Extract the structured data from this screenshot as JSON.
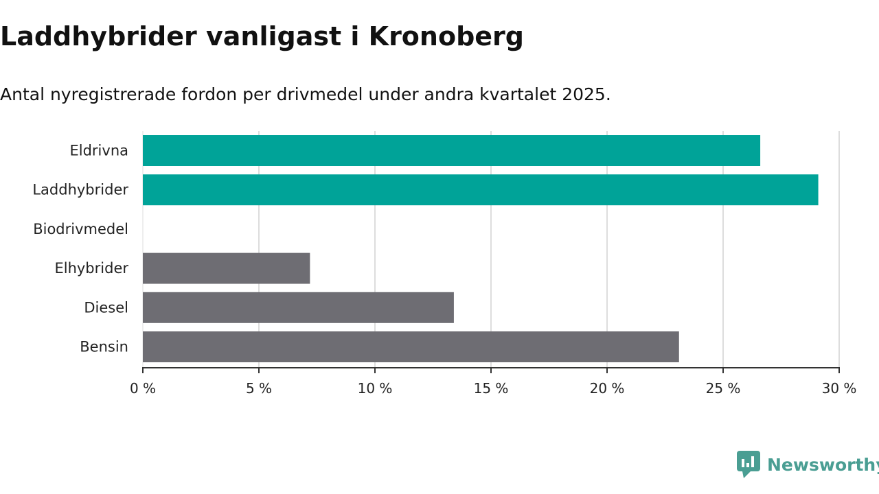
{
  "page": {
    "title": "Laddhybrider vanligast i Kronoberg",
    "subtitle": "Antal nyregistrerade fordon per drivmedel under andra kvartalet 2025.",
    "logo": {
      "name": "Newsworthy",
      "icon": "newsworthy-logo-icon",
      "color": "#4a9e93"
    }
  },
  "chart_data": {
    "type": "bar",
    "orientation": "horizontal",
    "categories": [
      "Eldrivna",
      "Laddhybrider",
      "Biodrivmedel",
      "Elhybrider",
      "Diesel",
      "Bensin"
    ],
    "values": [
      26.6,
      29.1,
      0,
      7.2,
      13.4,
      23.1
    ],
    "colors": [
      "#00a398",
      "#00a398",
      "#00a398",
      "#6e6d73",
      "#6e6d73",
      "#6e6d73"
    ],
    "xlim": [
      0,
      30
    ],
    "xticks": [
      0,
      5,
      10,
      15,
      20,
      25,
      30
    ],
    "tick_suffix": " %",
    "grid": "vertical",
    "legend": "none"
  }
}
